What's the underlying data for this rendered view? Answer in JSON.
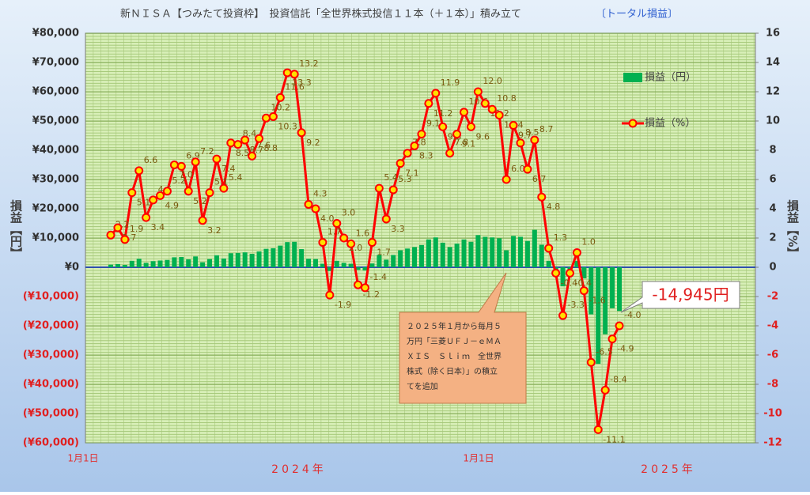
{
  "chart_data": {
    "type": "bar_line",
    "title": "新ＮＩＳＡ【つみたて投資枠】　投資信託「全世界株式投信１１本（＋１本）」積み立て",
    "subtitle": "〔トータル損益〕",
    "y_label": "損益【円】",
    "y2_label": "損益【%】",
    "x_axis_labels": [
      "1月1日",
      "1月1日"
    ],
    "x_axis_years": [
      "2024年",
      "2025年"
    ],
    "categories": [
      null,
      null,
      null,
      null,
      null,
      null,
      null,
      null,
      null,
      null,
      null,
      null,
      null,
      null,
      null,
      null,
      null,
      null,
      null,
      null,
      null,
      null,
      null,
      null,
      null,
      null,
      null,
      null,
      null,
      null,
      null,
      null,
      null,
      null,
      null,
      null,
      null,
      null,
      null,
      null,
      null,
      null,
      null,
      null,
      null,
      null,
      null,
      null,
      null,
      null,
      null,
      null,
      null,
      null,
      null,
      null,
      null,
      null,
      null,
      null,
      null,
      null,
      null,
      null,
      null,
      null,
      null,
      null,
      null,
      null,
      null,
      null,
      null
    ],
    "ylim": [
      -60000,
      80000
    ],
    "yticks": [
      {
        "value": -60000,
        "label": "(¥60,000)"
      },
      {
        "value": -50000,
        "label": "(¥50,000)"
      },
      {
        "value": -40000,
        "label": "(¥40,000)"
      },
      {
        "value": -30000,
        "label": "(¥30,000)"
      },
      {
        "value": -20000,
        "label": "(¥20,000)"
      },
      {
        "value": -10000,
        "label": "(¥10,000)"
      },
      {
        "value": 0,
        "label": "¥0"
      },
      {
        "value": 10000,
        "label": "¥10,000"
      },
      {
        "value": 20000,
        "label": "¥20,000"
      },
      {
        "value": 30000,
        "label": "¥30,000"
      },
      {
        "value": 40000,
        "label": "¥40,000"
      },
      {
        "value": 50000,
        "label": "¥50,000"
      },
      {
        "value": 60000,
        "label": "¥60,000"
      },
      {
        "value": 70000,
        "label": "¥70,000"
      },
      {
        "value": 80000,
        "label": "¥80,000"
      }
    ],
    "y2lim": [
      -12,
      16
    ],
    "y2ticks": [
      -12,
      -10,
      -8,
      -6,
      -4,
      -2,
      0,
      2,
      4,
      6,
      8,
      10,
      12,
      14,
      16
    ],
    "grid": true,
    "legend": "right",
    "series": [
      {
        "name": "損益（円）",
        "color": "#00b050",
        "axis": "y",
        "values": [
          900,
          1100,
          800,
          2200,
          2900,
          1500,
          2100,
          2300,
          2500,
          3400,
          3500,
          2700,
          3700,
          1700,
          2800,
          4100,
          3000,
          4800,
          4900,
          5100,
          4600,
          5400,
          6300,
          6500,
          7400,
          8600,
          8700,
          6200,
          2900,
          2800,
          1200,
          -1300,
          2200,
          1500,
          1200,
          -900,
          -1100,
          1300,
          4200,
          2600,
          4200,
          5800,
          6400,
          6900,
          7600,
          9500,
          10200,
          8400,
          6900,
          8100,
          9500,
          8700,
          11000,
          10400,
          10200,
          9900,
          5800,
          10700,
          10400,
          9000,
          12800,
          7700,
          2200,
          -700,
          -6500,
          -800,
          2200,
          -3800,
          -16100,
          -33000,
          -22900,
          -14000,
          -14945
        ]
      },
      {
        "name": "損益（%）",
        "color": "#ff0000",
        "axis": "y2",
        "values": [
          2.2,
          2.7,
          1.9,
          5.1,
          6.6,
          3.4,
          4.6,
          4.9,
          5.2,
          7.0,
          6.9,
          5.2,
          7.2,
          3.2,
          5.1,
          7.4,
          5.4,
          8.5,
          8.4,
          8.7,
          7.6,
          8.8,
          10.2,
          10.3,
          11.6,
          13.3,
          13.2,
          9.2,
          4.3,
          4.0,
          1.7,
          -1.9,
          3.0,
          2.0,
          1.6,
          -1.2,
          -1.4,
          1.7,
          5.4,
          3.3,
          5.3,
          7.1,
          7.8,
          8.3,
          9.1,
          11.2,
          11.9,
          9.6,
          7.8,
          9.1,
          10.6,
          9.6,
          12.0,
          11.2,
          10.8,
          10.4,
          6.0,
          9.7,
          8.5,
          6.7,
          8.7,
          4.8,
          1.3,
          -0.4,
          -3.3,
          -0.4,
          1.0,
          -1.6,
          -6.5,
          -11.1,
          -8.4,
          -4.9,
          -4.0
        ],
        "value_labels": [
          "2.2",
          "2.7",
          "1.9",
          "5.1",
          "6.6",
          "3.4",
          "4.6",
          "4.9",
          "5.2",
          "7.0",
          "6.9",
          "5.2",
          "7.2",
          "3.2",
          "5.1",
          "7.4",
          "5.4",
          "8.5",
          "8.4",
          "8.7",
          "7.6",
          "8.8",
          "10.2",
          "10.3",
          "11.6",
          "13.3",
          "13.2",
          "9.2",
          "4.3",
          "4.0",
          "1.7",
          "-1.9",
          "3.0",
          "2.0",
          "1.6",
          "-1.2",
          "-1.4",
          "1.7",
          "5.4",
          "3.3",
          "5.3",
          "7.1",
          "7.8",
          "8.3",
          "9.1",
          "11.2",
          "11.9",
          "9.6",
          "7.8",
          "9.1",
          "10.6",
          "9.6",
          "12.0",
          "11.2",
          "10.8",
          "10.4",
          "6.0",
          "9.7",
          "8.5",
          "6.7",
          "8.7",
          "4.8",
          "1.3",
          "-0.4",
          "-3.3",
          "-0.4",
          "1.0",
          "-1.6",
          "-6.5",
          "-11.1",
          "-8.4",
          "-4.9",
          "-4.0"
        ]
      }
    ],
    "annotations": [
      {
        "text": "-14,945円"
      },
      {
        "lines": [
          "２０２５年１月から毎月５",
          "万円「三菱ＵＦＪ－ｅＭＡ",
          "ＸＩＳ　Ｓｌｉｍ　全世界",
          "株式（除く日本）」の積立",
          "てを追加"
        ]
      }
    ]
  }
}
